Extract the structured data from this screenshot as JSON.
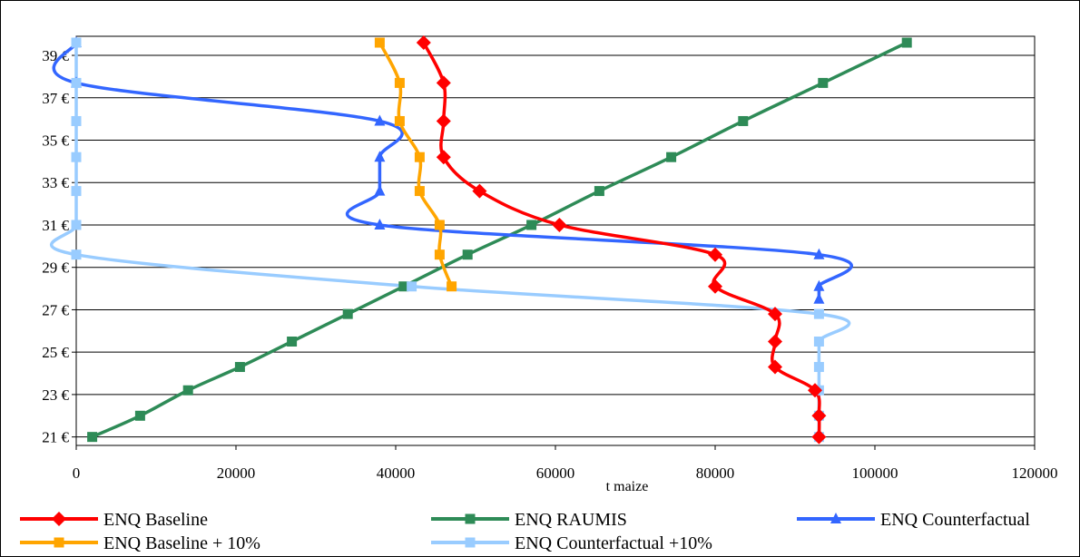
{
  "chart_data": {
    "type": "line",
    "title": "",
    "xlabel": "t maize",
    "ylabel": "",
    "xlim": [
      0,
      120000
    ],
    "ylim": [
      20.6,
      39.9
    ],
    "x_ticks": [
      0,
      20000,
      40000,
      60000,
      80000,
      100000,
      120000
    ],
    "x_tick_labels": [
      "0",
      "20000",
      "40000",
      "60000",
      "80000",
      "100000",
      "120000"
    ],
    "y_ticks": [
      21,
      23,
      25,
      27,
      29,
      31,
      33,
      35,
      37,
      39
    ],
    "y_tick_labels": [
      "21 €",
      "23 €",
      "25 €",
      "27 €",
      "29 €",
      "31 €",
      "33 €",
      "35 €",
      "37 €",
      "39 €"
    ],
    "grid": "horizontal",
    "legend_position": "bottom",
    "series": [
      {
        "name": "ENQ Baseline",
        "color": "#ff0000",
        "marker": "diamond",
        "points": [
          [
            93000,
            21
          ],
          [
            93000,
            22
          ],
          [
            92500,
            23.2
          ],
          [
            87500,
            24.3
          ],
          [
            87500,
            25.5
          ],
          [
            87500,
            26.8
          ],
          [
            80000,
            28.1
          ],
          [
            80000,
            29.6
          ],
          [
            60500,
            31
          ],
          [
            50500,
            32.6
          ],
          [
            46000,
            34.2
          ],
          [
            46000,
            35.9
          ],
          [
            46000,
            37.7
          ],
          [
            43500,
            39.6
          ]
        ]
      },
      {
        "name": "ENQ RAUMIS",
        "color": "#2e8b57",
        "marker": "square",
        "points": [
          [
            2000,
            21
          ],
          [
            8000,
            22
          ],
          [
            14000,
            23.2
          ],
          [
            20500,
            24.3
          ],
          [
            27000,
            25.5
          ],
          [
            34000,
            26.8
          ],
          [
            41000,
            28.1
          ],
          [
            49000,
            29.6
          ],
          [
            57000,
            31
          ],
          [
            65500,
            32.6
          ],
          [
            74500,
            34.2
          ],
          [
            83500,
            35.9
          ],
          [
            93500,
            37.7
          ],
          [
            104000,
            39.6
          ]
        ]
      },
      {
        "name": "ENQ Counterfactual",
        "color": "#3366ff",
        "marker": "triangle",
        "points": [
          [
            93000,
            27.5
          ],
          [
            93000,
            28.1
          ],
          [
            93000,
            29.6
          ],
          [
            38000,
            31
          ],
          [
            38000,
            32.6
          ],
          [
            38000,
            34.2
          ],
          [
            38000,
            35.9
          ],
          [
            0,
            37.7
          ],
          [
            0,
            39.6
          ]
        ]
      },
      {
        "name": "ENQ Baseline  + 10%",
        "color": "#ffa500",
        "marker": "square",
        "points": [
          [
            47000,
            28.1
          ],
          [
            45500,
            29.6
          ],
          [
            45500,
            31
          ],
          [
            43000,
            32.6
          ],
          [
            43000,
            34.2
          ],
          [
            40500,
            35.9
          ],
          [
            40500,
            37.7
          ],
          [
            38000,
            39.6
          ]
        ]
      },
      {
        "name": "ENQ Counterfactual +10%",
        "color": "#99ccff",
        "marker": "square",
        "points": [
          [
            93000,
            21
          ],
          [
            93000,
            22
          ],
          [
            93000,
            23.2
          ],
          [
            93000,
            24.3
          ],
          [
            93000,
            25.5
          ],
          [
            93000,
            26.8
          ],
          [
            42000,
            28.1
          ],
          [
            0,
            29.6
          ],
          [
            0,
            31
          ],
          [
            0,
            32.6
          ],
          [
            0,
            34.2
          ],
          [
            0,
            35.9
          ],
          [
            0,
            37.7
          ],
          [
            0,
            39.6
          ]
        ]
      }
    ]
  }
}
